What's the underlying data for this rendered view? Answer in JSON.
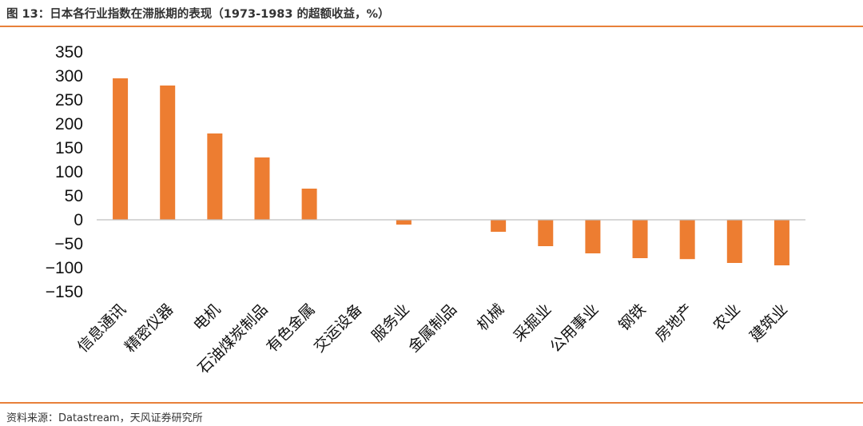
{
  "header": {
    "title": "图 13：日本各行业指数在滞胀期的表现（1973-1983 的超额收益，%）"
  },
  "footer": {
    "source": "资料来源：Datastream，天风证券研究所"
  },
  "colors": {
    "accent": "#e8803a",
    "bar": "#ed7d31",
    "axis": "#bfbfbf"
  },
  "chart_data": {
    "type": "bar",
    "categories": [
      "信息通讯",
      "精密仪器",
      "电机",
      "石油煤炭制品",
      "有色金属",
      "交运设备",
      "服务业",
      "金属制品",
      "机械",
      "采掘业",
      "公用事业",
      "钢铁",
      "房地产",
      "农业",
      "建筑业"
    ],
    "values": [
      295,
      280,
      180,
      130,
      65,
      0,
      -10,
      0,
      -25,
      -55,
      -70,
      -80,
      -82,
      -90,
      -95
    ],
    "ylim": [
      -150,
      350
    ],
    "yticks": [
      350,
      300,
      250,
      200,
      150,
      100,
      50,
      0,
      -50,
      -100,
      -150
    ],
    "ytick_labels": [
      "350",
      "300",
      "250",
      "200",
      "150",
      "100",
      "50",
      "0",
      "−50",
      "−100",
      "−150"
    ],
    "grid": false
  }
}
